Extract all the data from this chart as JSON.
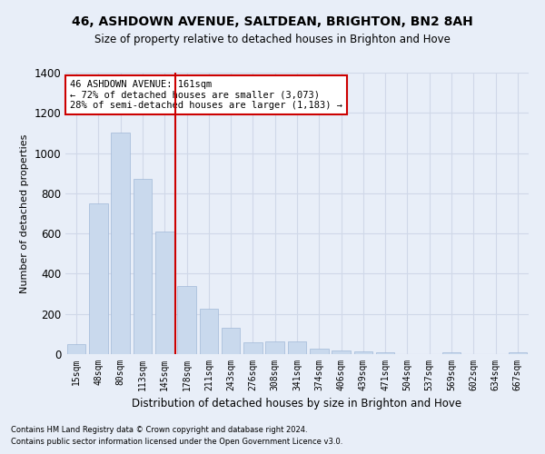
{
  "title1": "46, ASHDOWN AVENUE, SALTDEAN, BRIGHTON, BN2 8AH",
  "title2": "Size of property relative to detached houses in Brighton and Hove",
  "xlabel": "Distribution of detached houses by size in Brighton and Hove",
  "ylabel": "Number of detached properties",
  "footnote1": "Contains HM Land Registry data © Crown copyright and database right 2024.",
  "footnote2": "Contains public sector information licensed under the Open Government Licence v3.0.",
  "annotation_line1": "46 ASHDOWN AVENUE: 161sqm",
  "annotation_line2": "← 72% of detached houses are smaller (3,073)",
  "annotation_line3": "28% of semi-detached houses are larger (1,183) →",
  "bar_labels": [
    "15sqm",
    "48sqm",
    "80sqm",
    "113sqm",
    "145sqm",
    "178sqm",
    "211sqm",
    "243sqm",
    "276sqm",
    "308sqm",
    "341sqm",
    "374sqm",
    "406sqm",
    "439sqm",
    "471sqm",
    "504sqm",
    "537sqm",
    "569sqm",
    "602sqm",
    "634sqm",
    "667sqm"
  ],
  "bar_values": [
    50,
    750,
    1100,
    870,
    610,
    340,
    225,
    130,
    58,
    62,
    62,
    25,
    18,
    15,
    8,
    0,
    0,
    10,
    0,
    0,
    8
  ],
  "bar_color": "#c9d9ed",
  "bar_edge_color": "#a0b8d8",
  "vline_x_index": 4.5,
  "vline_color": "#cc0000",
  "annotation_box_color": "#cc0000",
  "grid_color": "#d0d8e8",
  "background_color": "#e8eef8",
  "ylim": [
    0,
    1400
  ],
  "yticks": [
    0,
    200,
    400,
    600,
    800,
    1000,
    1200,
    1400
  ]
}
